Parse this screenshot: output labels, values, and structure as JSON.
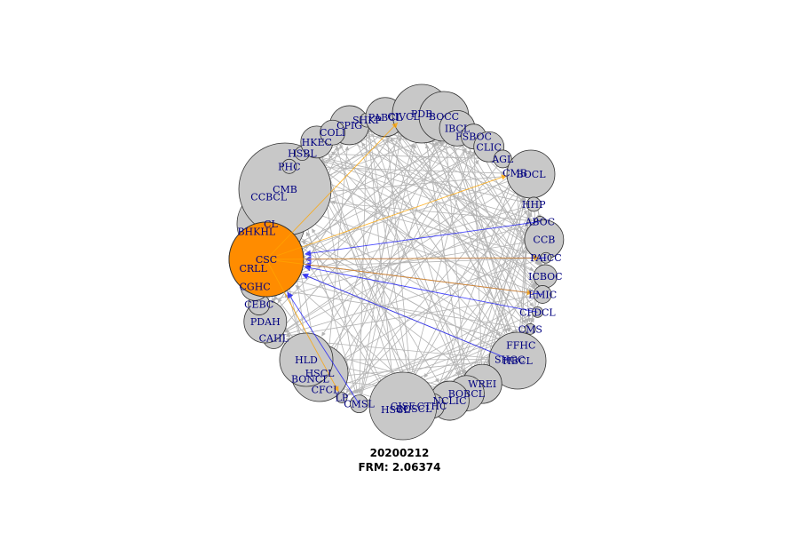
{
  "colors": {
    "node_fill": "#c8c8c8",
    "highlight_fill": "#ff8c00",
    "edge_gray": "#b4b4b4",
    "edge_orange": "#ffa500",
    "edge_blue": "#0000ff",
    "label": "#000080"
  },
  "caption": {
    "date": "20200212",
    "frm": "FRM: 2.06374"
  },
  "highlight_node": "CSC",
  "nodes": [
    "CPIG",
    "SHKP",
    "PABCL",
    "CIVCL",
    "PDB",
    "BOCC",
    "IBCL",
    "FSBOC",
    "CLIC",
    "AGL",
    "CMB",
    "BOCL",
    "HHP",
    "ABOC",
    "CCB",
    "PAICC",
    "ICBOC",
    "EMIC",
    "CFDCL",
    "CMS",
    "FFHC",
    "SHGC",
    "HBCL",
    "WREI",
    "BOBCL",
    "NCLIC",
    "CTHC",
    "BOSCL",
    "HSCL",
    "CJSE",
    "CMSL",
    "LP",
    "CFCL",
    "BONCL",
    "HSCL",
    "HLD",
    "CAHL",
    "PDAH",
    "CEBC",
    "CGHC",
    "CRLL",
    "CSC",
    "BHKHL",
    "CL",
    "CCBCL",
    "CMB",
    "PHC",
    "HSBL",
    "HKEC",
    "COLI"
  ],
  "edges_highlight": [
    {
      "from": "ABOC",
      "to": "CSC",
      "type": "in"
    },
    {
      "from": "PAICC",
      "to": "CSC",
      "type": "in"
    },
    {
      "from": "CFDCL",
      "to": "CSC",
      "type": "in"
    },
    {
      "from": "SHGC",
      "to": "CSC",
      "type": "in"
    },
    {
      "from": "EMIC",
      "to": "CSC",
      "type": "in"
    },
    {
      "from": "CMSL",
      "to": "CSC",
      "type": "in"
    },
    {
      "from": "CSC",
      "to": "CIVCL",
      "type": "out"
    },
    {
      "from": "CSC",
      "to": "CMB",
      "type": "out"
    },
    {
      "from": "CSC",
      "to": "PAICC",
      "type": "out"
    },
    {
      "from": "CSC",
      "to": "EMIC",
      "type": "out"
    },
    {
      "from": "CSC",
      "to": "LP",
      "type": "out"
    }
  ]
}
